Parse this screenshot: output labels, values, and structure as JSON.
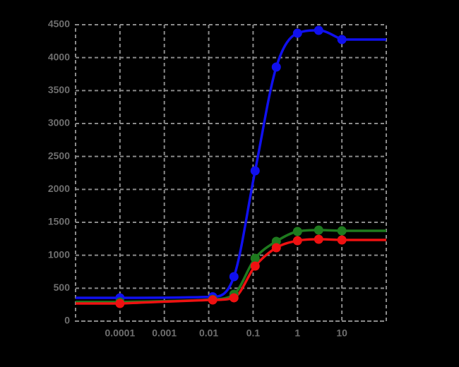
{
  "chart_data": {
    "type": "line",
    "x": [
      0.0001,
      0.0123,
      0.037,
      0.111,
      0.333,
      1,
      3,
      10
    ],
    "series": [
      {
        "color": "#1010ee",
        "values": [
          354,
          370,
          675,
          2282,
          3857,
          4371,
          4414,
          4275
        ]
      },
      {
        "color": "#1e7a1e",
        "values": [
          290,
          330,
          407,
          954,
          1211,
          1361,
          1382,
          1371
        ]
      },
      {
        "color": "#ee1111",
        "values": [
          268,
          321,
          354,
          836,
          1114,
          1221,
          1243,
          1232
        ]
      }
    ],
    "xlim": [
      1e-05,
      100
    ],
    "xscale": "log",
    "xticks": [
      0.0001,
      0.001,
      0.01,
      0.1,
      1,
      10
    ],
    "ylim": [
      0,
      4500
    ],
    "yticks": [
      0,
      500,
      1000,
      1500,
      2000,
      2500,
      3000,
      3500,
      4000,
      4500
    ],
    "grid": true
  }
}
